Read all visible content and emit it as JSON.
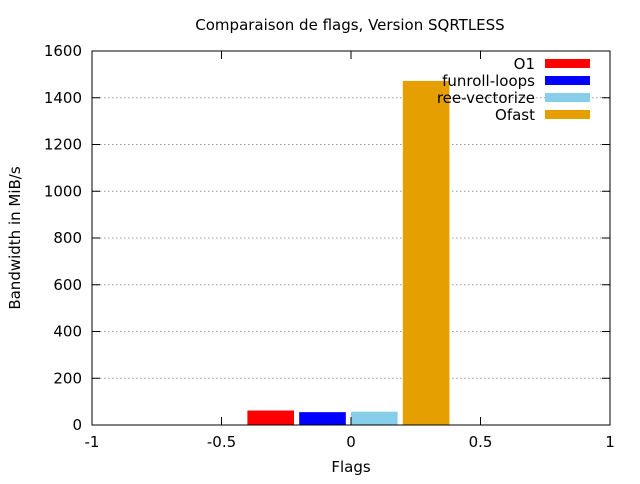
{
  "chart_data": {
    "type": "bar",
    "title": "Comparaison de flags, Version SQRTLESS",
    "xlabel": "Flags",
    "ylabel": "Bandwidth in MiB/s",
    "xlim": [
      -1,
      1
    ],
    "ylim": [
      0,
      1600
    ],
    "x_ticks": [
      -1,
      -0.5,
      0,
      0.5,
      1
    ],
    "x_tick_labels": [
      "-1",
      "-0.5",
      "0",
      "0.5",
      "1"
    ],
    "y_ticks": [
      0,
      200,
      400,
      600,
      800,
      1000,
      1200,
      1400,
      1600
    ],
    "y_tick_labels": [
      "0",
      "200",
      "400",
      "600",
      "800",
      "1000",
      "1200",
      "1400",
      "1600"
    ],
    "grid": "horizontal dotted",
    "legend_position": "top-right",
    "series": [
      {
        "name": "O1",
        "value": 62,
        "x_range": [
          -0.4,
          -0.22
        ],
        "color": "#ff0000"
      },
      {
        "name": "funroll-loops",
        "value": 55,
        "x_range": [
          -0.2,
          -0.02
        ],
        "color": "#0000ff"
      },
      {
        "name": "ree-vectorize",
        "value": 57,
        "x_range": [
          0.0,
          0.18
        ],
        "color": "#87ceeb"
      },
      {
        "name": "Ofast",
        "value": 1472,
        "x_range": [
          0.2,
          0.38
        ],
        "color": "#e69f00"
      }
    ]
  }
}
